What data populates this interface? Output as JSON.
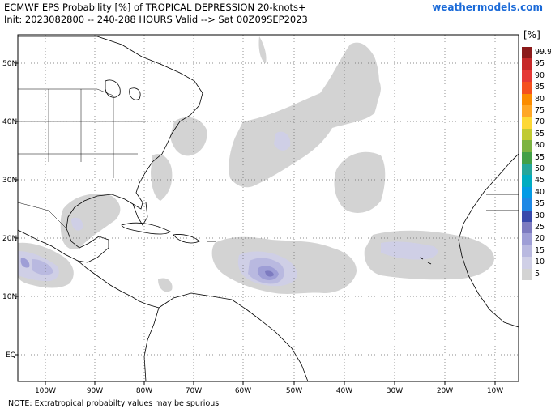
{
  "header": {
    "title_line1": "ECMWF EPS Probability [%] of TROPICAL DEPRESSION 20-knots+",
    "title_line2": "Init: 2023082800 -- 240-288 HOURS Valid --> Sat 00Z09SEP2023",
    "brand": "weathermodels.com"
  },
  "map": {
    "latitude_labels": [
      "50N",
      "40N",
      "30N",
      "20N",
      "10N",
      "EQ"
    ],
    "longitude_labels": [
      "100W",
      "90W",
      "80W",
      "70W",
      "60W",
      "50W",
      "40W",
      "30W",
      "20W",
      "10W"
    ],
    "land_color": "#ffffff",
    "coast_color": "#000000",
    "grid_style": "dotted"
  },
  "legend": {
    "unit": "[%]",
    "levels": [
      {
        "label": "99.9",
        "color": "#8b1a1a"
      },
      {
        "label": "95",
        "color": "#c62828"
      },
      {
        "label": "90",
        "color": "#e53935"
      },
      {
        "label": "85",
        "color": "#f4511e"
      },
      {
        "label": "80",
        "color": "#fb8c00"
      },
      {
        "label": "75",
        "color": "#ffa726"
      },
      {
        "label": "70",
        "color": "#fdd835"
      },
      {
        "label": "65",
        "color": "#c0ca33"
      },
      {
        "label": "60",
        "color": "#7cb342"
      },
      {
        "label": "55",
        "color": "#43a047"
      },
      {
        "label": "50",
        "color": "#26a69a"
      },
      {
        "label": "45",
        "color": "#00acc1"
      },
      {
        "label": "40",
        "color": "#039be5"
      },
      {
        "label": "35",
        "color": "#1e88e5"
      },
      {
        "label": "30",
        "color": "#3949ab"
      },
      {
        "label": "25",
        "color": "#7d7bc0"
      },
      {
        "label": "20",
        "color": "#9e9ed6"
      },
      {
        "label": "15",
        "color": "#b9b9e0"
      },
      {
        "label": "10",
        "color": "#cfcfe6"
      },
      {
        "label": "5",
        "color": "#d3d3d3"
      }
    ]
  },
  "footer": {
    "note": "NOTE: Extratropical probabilty values may be spurious"
  }
}
